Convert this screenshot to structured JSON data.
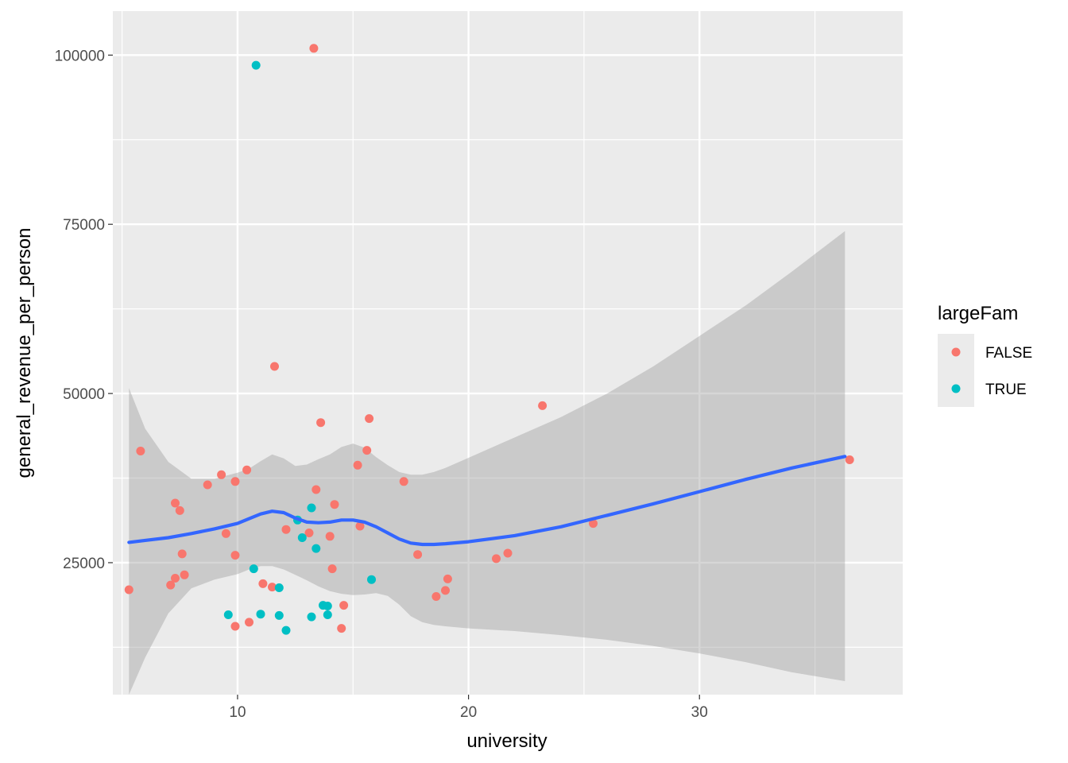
{
  "chart_data": {
    "type": "scatter",
    "xlabel": "university",
    "ylabel": "general_revenue_per_person",
    "xlim": [
      4.6,
      38.8
    ],
    "ylim": [
      5500,
      106500
    ],
    "x_ticks": [
      10,
      20,
      30
    ],
    "x_tick_labels": [
      "10",
      "20",
      "30"
    ],
    "x_minor_ticks": [
      5,
      15,
      25,
      35
    ],
    "y_ticks": [
      25000,
      50000,
      75000,
      100000
    ],
    "y_tick_labels": [
      "25000",
      "50000",
      "75000",
      "100000"
    ],
    "y_minor_ticks": [
      12500,
      37500,
      62500,
      87500
    ],
    "grid": true,
    "legend": {
      "title": "largeFam",
      "position": "right",
      "entries": [
        {
          "label": "FALSE",
          "color": "#F8766D"
        },
        {
          "label": "TRUE",
          "color": "#00BFC4"
        }
      ]
    },
    "series": [
      {
        "name": "FALSE",
        "color": "#F8766D",
        "points": [
          [
            5.3,
            21000
          ],
          [
            5.8,
            41500
          ],
          [
            7.1,
            21700
          ],
          [
            7.3,
            33800
          ],
          [
            7.3,
            22700
          ],
          [
            7.5,
            32700
          ],
          [
            7.6,
            26300
          ],
          [
            7.7,
            23200
          ],
          [
            8.7,
            36500
          ],
          [
            9.3,
            38000
          ],
          [
            9.5,
            29300
          ],
          [
            9.9,
            37000
          ],
          [
            9.9,
            26100
          ],
          [
            9.9,
            15600
          ],
          [
            10.4,
            38700
          ],
          [
            10.5,
            16200
          ],
          [
            11.1,
            21900
          ],
          [
            11.5,
            21400
          ],
          [
            11.6,
            54000
          ],
          [
            12.1,
            29900
          ],
          [
            13.1,
            29400
          ],
          [
            13.3,
            101000
          ],
          [
            13.4,
            35800
          ],
          [
            13.6,
            45700
          ],
          [
            14.0,
            28900
          ],
          [
            14.1,
            24100
          ],
          [
            14.2,
            33600
          ],
          [
            14.5,
            15300
          ],
          [
            14.6,
            18700
          ],
          [
            15.2,
            39400
          ],
          [
            15.3,
            30400
          ],
          [
            15.6,
            41600
          ],
          [
            15.7,
            46300
          ],
          [
            17.2,
            37000
          ],
          [
            17.8,
            26200
          ],
          [
            18.6,
            20000
          ],
          [
            19.0,
            20900
          ],
          [
            19.1,
            22600
          ],
          [
            21.2,
            25600
          ],
          [
            21.7,
            26400
          ],
          [
            23.2,
            48200
          ],
          [
            25.4,
            30800
          ],
          [
            36.5,
            40200
          ]
        ]
      },
      {
        "name": "TRUE",
        "color": "#00BFC4",
        "points": [
          [
            9.6,
            17300
          ],
          [
            10.7,
            24100
          ],
          [
            10.8,
            98500
          ],
          [
            11.0,
            17400
          ],
          [
            11.8,
            17200
          ],
          [
            11.8,
            21300
          ],
          [
            12.1,
            15000
          ],
          [
            12.6,
            31300
          ],
          [
            12.8,
            28700
          ],
          [
            13.2,
            33100
          ],
          [
            13.2,
            17000
          ],
          [
            13.4,
            27100
          ],
          [
            13.7,
            18700
          ],
          [
            13.9,
            18600
          ],
          [
            13.9,
            17300
          ],
          [
            15.8,
            22500
          ]
        ]
      }
    ],
    "smooth": {
      "type": "loess",
      "color": "#3366FF",
      "band_color": "#999999",
      "x": [
        5.3,
        6,
        7,
        8,
        9,
        10,
        10.5,
        11,
        11.5,
        12,
        12.5,
        13,
        13.5,
        14,
        14.5,
        15,
        15.5,
        16,
        16.5,
        17,
        17.5,
        18,
        18.5,
        19,
        20,
        22,
        24,
        26,
        28,
        30,
        32,
        34,
        36.3
      ],
      "y": [
        28000,
        28300,
        28700,
        29300,
        30000,
        30800,
        31500,
        32200,
        32600,
        32400,
        31600,
        31000,
        30900,
        31000,
        31300,
        31300,
        31000,
        30300,
        29400,
        28500,
        27900,
        27700,
        27700,
        27800,
        28100,
        29000,
        30300,
        32000,
        33700,
        35500,
        37300,
        39000,
        40700
      ],
      "ymin": [
        5500,
        11000,
        17500,
        21200,
        22500,
        23300,
        24000,
        24500,
        24500,
        24000,
        23200,
        22400,
        21500,
        20800,
        20400,
        20200,
        20300,
        20500,
        20100,
        18800,
        17100,
        16200,
        15800,
        15600,
        15300,
        14900,
        14300,
        13600,
        12700,
        11600,
        10300,
        8800,
        7500
      ],
      "ymax": [
        50800,
        44800,
        39900,
        37400,
        37400,
        38300,
        38900,
        40000,
        41000,
        40400,
        39300,
        39500,
        40300,
        41000,
        42100,
        42600,
        42000,
        40600,
        39400,
        38400,
        38000,
        38000,
        38400,
        39000,
        40500,
        43500,
        46500,
        50000,
        54000,
        58500,
        63000,
        68000,
        74000
      ]
    }
  }
}
